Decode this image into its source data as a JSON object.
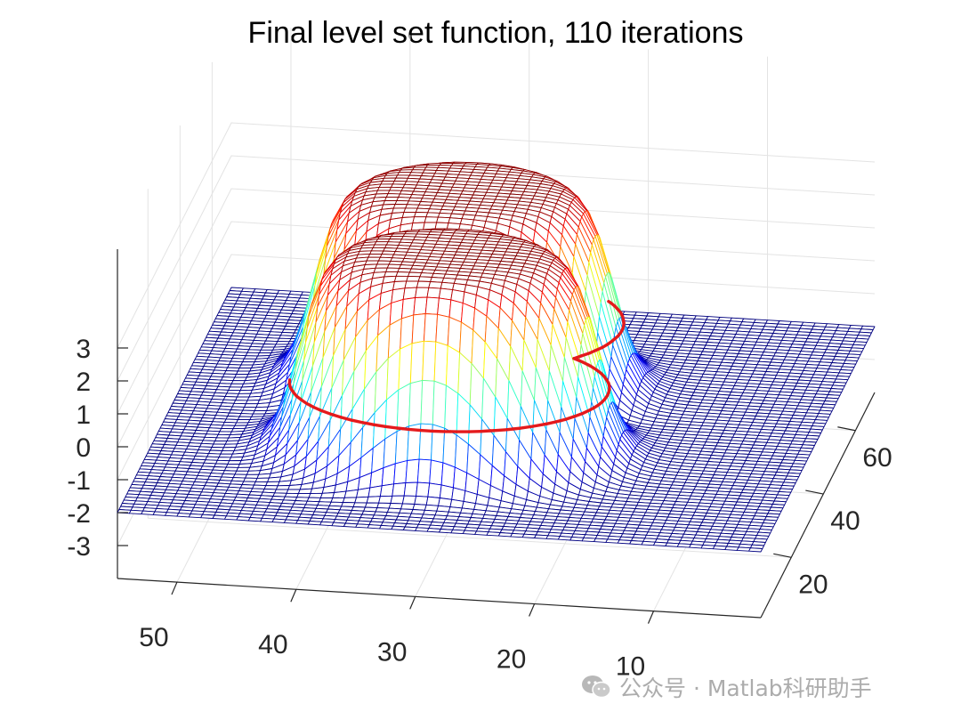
{
  "chart_data": {
    "type": "surface",
    "title": "Final level set function, 110 iterations",
    "xlabel": "",
    "ylabel": "",
    "zlabel": "",
    "x_ticks": [
      10,
      20,
      30,
      40,
      50
    ],
    "y_ticks": [
      20,
      40,
      60
    ],
    "z_ticks": [
      -3,
      -2,
      -1,
      0,
      1,
      2,
      3
    ],
    "xlim": [
      1,
      55
    ],
    "ylim": [
      1,
      72
    ],
    "zlim": [
      -4,
      6
    ],
    "grid": true,
    "colormap": "jet",
    "colormap_range": [
      -2,
      4
    ],
    "base_level": -2,
    "plateau_level": 4,
    "zero_level_contour": {
      "level": 0,
      "color": "#e41a1c",
      "shape": "union of two overlapping rounded blobs"
    },
    "colors": {
      "base_mesh": "#4b44e6",
      "contour": "#e41a1c",
      "plateau": "#ffff00"
    }
  },
  "watermark": {
    "text": "公众号 · Matlab科研助手",
    "icon": "wechat-icon"
  }
}
